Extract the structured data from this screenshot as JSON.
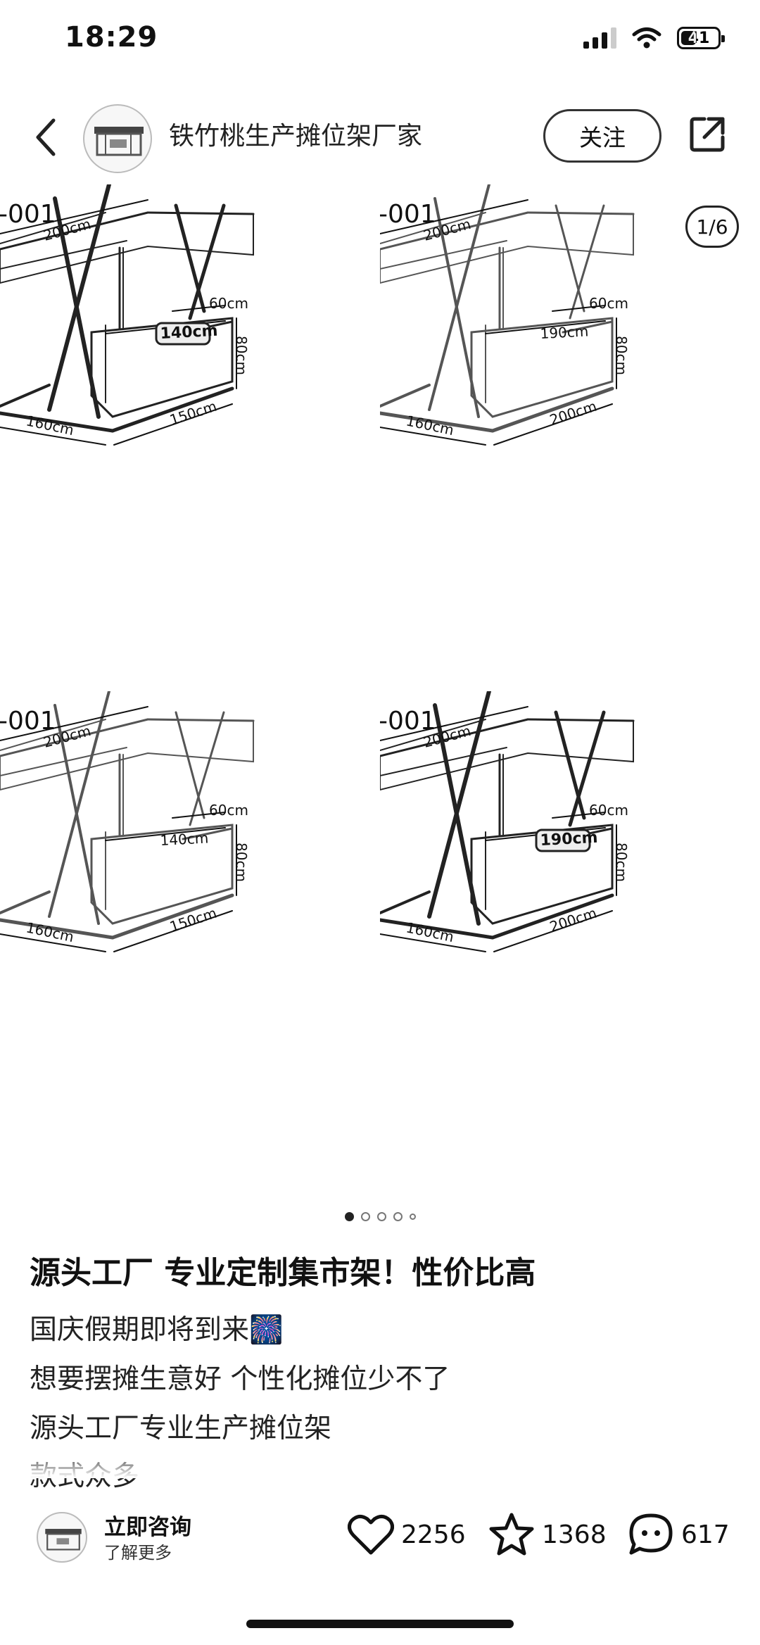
{
  "status_bar": {
    "time": "18:29",
    "battery_level": "41",
    "battery_fraction": 0.41,
    "icons": [
      "signal-icon",
      "wifi-icon",
      "battery-icon"
    ]
  },
  "header": {
    "shop_name": "铁竹桃生产摊位架厂家",
    "follow_label": "关注",
    "icons": [
      "back-icon",
      "share-icon"
    ]
  },
  "carousel": {
    "page_indicator": "1/6",
    "dot_count": 5,
    "active_index": 0,
    "panels": [
      {
        "label": "-001",
        "dims": {
          "top": "200cm",
          "depth_top": "60cm",
          "inner": "140cm",
          "height": "80cm",
          "left": "160cm",
          "front": "150cm"
        },
        "inner_label_boxed": true,
        "style": "dark"
      },
      {
        "label": "-001",
        "dims": {
          "top": "200cm",
          "depth_top": "60cm",
          "inner": "190cm",
          "height": "80cm",
          "left": "160cm",
          "front": "200cm"
        },
        "inner_label_boxed": false,
        "style": "light"
      },
      {
        "label": "-001",
        "dims": {
          "top": "200cm",
          "depth_top": "60cm",
          "inner": "140cm",
          "height": "80cm",
          "left": "160cm",
          "front": "150cm"
        },
        "inner_label_boxed": false,
        "style": "light"
      },
      {
        "label": "-001",
        "dims": {
          "top": "200cm",
          "depth_top": "60cm",
          "inner": "190cm",
          "height": "80cm",
          "left": "160cm",
          "front": "200cm"
        },
        "inner_label_boxed": true,
        "style": "dark"
      }
    ]
  },
  "post": {
    "title": "源头工厂 专业定制集市架！性价比高",
    "lines": [
      "国庆假期即将到来🎆",
      "想要摆摊生意好 个性化摊位少不了",
      "源头工厂专业生产摊位架",
      "款式众多"
    ]
  },
  "bottom_bar": {
    "consult_title": "立即咨询",
    "consult_subtitle": "了解更多",
    "likes": "2256",
    "favorites": "1368",
    "comments": "617",
    "icons": [
      "heart-icon",
      "star-icon",
      "comment-icon"
    ]
  }
}
